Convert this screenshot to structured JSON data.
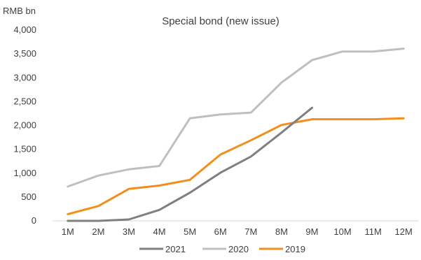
{
  "chart_data": {
    "type": "line",
    "title": "Special bond (new issue)",
    "ylabel": "RMB bn",
    "xlabel": "",
    "ylim": [
      0,
      4000
    ],
    "yticks": [
      0,
      500,
      1000,
      1500,
      2000,
      2500,
      3000,
      3500,
      4000
    ],
    "ytick_labels": [
      "0",
      "500",
      "1,000",
      "1,500",
      "2,000",
      "2,500",
      "3,000",
      "3,500",
      "4,000"
    ],
    "categories": [
      "1M",
      "2M",
      "3M",
      "4M",
      "5M",
      "6M",
      "7M",
      "8M",
      "9M",
      "10M",
      "11M",
      "12M"
    ],
    "grid": false,
    "legend_position": "bottom",
    "series": [
      {
        "name": "2021",
        "color": "#7f7f7f",
        "values": [
          0,
          0,
          30,
          230,
          590,
          1010,
          1350,
          1850,
          2370,
          null,
          null,
          null
        ]
      },
      {
        "name": "2020",
        "color": "#bfbfbf",
        "values": [
          720,
          950,
          1080,
          1150,
          2150,
          2230,
          2270,
          2900,
          3370,
          3550,
          3550,
          3610
        ]
      },
      {
        "name": "2019",
        "color": "#f28e1c",
        "values": [
          140,
          310,
          670,
          740,
          860,
          1390,
          1690,
          2010,
          2130,
          2130,
          2130,
          2150
        ]
      }
    ]
  }
}
